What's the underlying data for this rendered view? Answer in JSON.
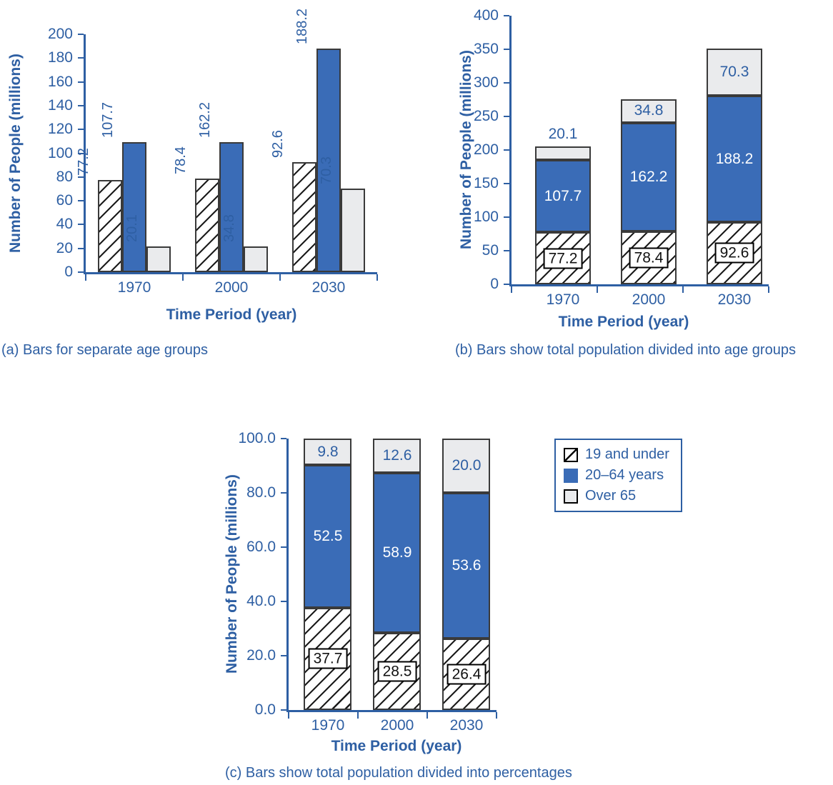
{
  "colors": {
    "text_blue": "#2E5FA3",
    "bar_blue": "#3A6CB7",
    "bar_gray": "#EAEBED",
    "bar_border": "#3A3A3A",
    "label_box_border": "#000000",
    "label_box_background": "#FFFFFF",
    "background": "#FFFFFF"
  },
  "chart_data": [
    {
      "id": "a",
      "type": "bar",
      "variant": "grouped",
      "caption": "(a) Bars for separate age groups",
      "xlabel": "Time Period (year)",
      "ylabel": "Number of People (millions)",
      "ylim": [
        0,
        200
      ],
      "ytick_values": [
        0,
        20,
        40,
        60,
        80,
        100,
        120,
        140,
        160,
        180,
        200
      ],
      "ytick_labels": [
        "0",
        "20",
        "40",
        "60",
        "80",
        "100",
        "120",
        "140",
        "160",
        "180",
        "200"
      ],
      "categories": [
        "1970",
        "2000",
        "2030"
      ],
      "series": [
        {
          "name": "19 and under",
          "key": "19-and-under",
          "style": "hatched",
          "values": [
            77.2,
            78.4,
            92.6
          ],
          "labels": [
            "77.2",
            "78.4",
            "92.6"
          ]
        },
        {
          "name": "20–64 years",
          "key": "20-64-years",
          "style": "blue",
          "values": [
            107.7,
            162.2,
            188.2
          ],
          "labels": [
            "107.7",
            "162.2",
            "188.2"
          ],
          "drawn_values": [
            109.5,
            109.5,
            188.2
          ]
        },
        {
          "name": "Over 65",
          "key": "over-65",
          "style": "gray",
          "values": [
            20.1,
            34.8,
            70.3
          ],
          "labels": [
            "20.1",
            "34.8",
            "70.3"
          ],
          "drawn_values": [
            21.9,
            21.9,
            70.3
          ]
        }
      ],
      "value_labels_rotated": true,
      "grid": false,
      "legend": null
    },
    {
      "id": "b",
      "type": "bar",
      "variant": "stacked",
      "caption": "(b) Bars show total population divided into age groups",
      "xlabel": "Time Period (year)",
      "ylabel": "Number of People (millions)",
      "ylim": [
        0,
        400
      ],
      "ytick_values": [
        0,
        50,
        100,
        150,
        200,
        250,
        300,
        350,
        400
      ],
      "ytick_labels": [
        "0",
        "50",
        "100",
        "150",
        "200",
        "250",
        "300",
        "350",
        "400"
      ],
      "categories": [
        "1970",
        "2000",
        "2030"
      ],
      "series": [
        {
          "name": "19 and under",
          "key": "19-and-under",
          "style": "hatched",
          "values": [
            77.2,
            78.4,
            92.6
          ],
          "labels": [
            "77.2",
            "78.4",
            "92.6"
          ]
        },
        {
          "name": "20–64 years",
          "key": "20-64-years",
          "style": "blue",
          "values": [
            107.7,
            162.2,
            188.2
          ],
          "labels": [
            "107.7",
            "162.2",
            "188.2"
          ]
        },
        {
          "name": "Over 65",
          "key": "over-65",
          "style": "gray",
          "values": [
            20.1,
            34.8,
            70.3
          ],
          "labels": [
            "20.1",
            "34.8",
            "70.3"
          ]
        }
      ],
      "stack_totals": [
        205.0,
        275.4,
        351.1
      ],
      "grid": false,
      "legend": null
    },
    {
      "id": "c",
      "type": "bar",
      "variant": "stacked-percent",
      "caption": "(c) Bars show total population divided into percentages",
      "xlabel": "Time Period (year)",
      "ylabel": "Number of People (millions)",
      "ylim": [
        0,
        100
      ],
      "ytick_values": [
        0,
        20,
        40,
        60,
        80,
        100
      ],
      "ytick_labels": [
        "0.0",
        "20.0",
        "40.0",
        "60.0",
        "80.0",
        "100.0"
      ],
      "categories": [
        "1970",
        "2000",
        "2030"
      ],
      "series": [
        {
          "name": "19 and under",
          "key": "19-and-under",
          "style": "hatched",
          "values": [
            37.7,
            28.5,
            26.4
          ],
          "labels": [
            "37.7",
            "28.5",
            "26.4"
          ]
        },
        {
          "name": "20–64 years",
          "key": "20-64-years",
          "style": "blue",
          "values": [
            52.5,
            58.9,
            53.6
          ],
          "labels": [
            "52.5",
            "58.9",
            "53.6"
          ]
        },
        {
          "name": "Over 65",
          "key": "over-65",
          "style": "gray",
          "values": [
            9.8,
            12.6,
            20.0
          ],
          "labels": [
            "9.8",
            "12.6",
            "20.0"
          ]
        }
      ],
      "grid": false,
      "legend": {
        "position": "top-right",
        "entries": [
          "19 and under",
          "20–64 years",
          "Over 65"
        ]
      }
    }
  ]
}
